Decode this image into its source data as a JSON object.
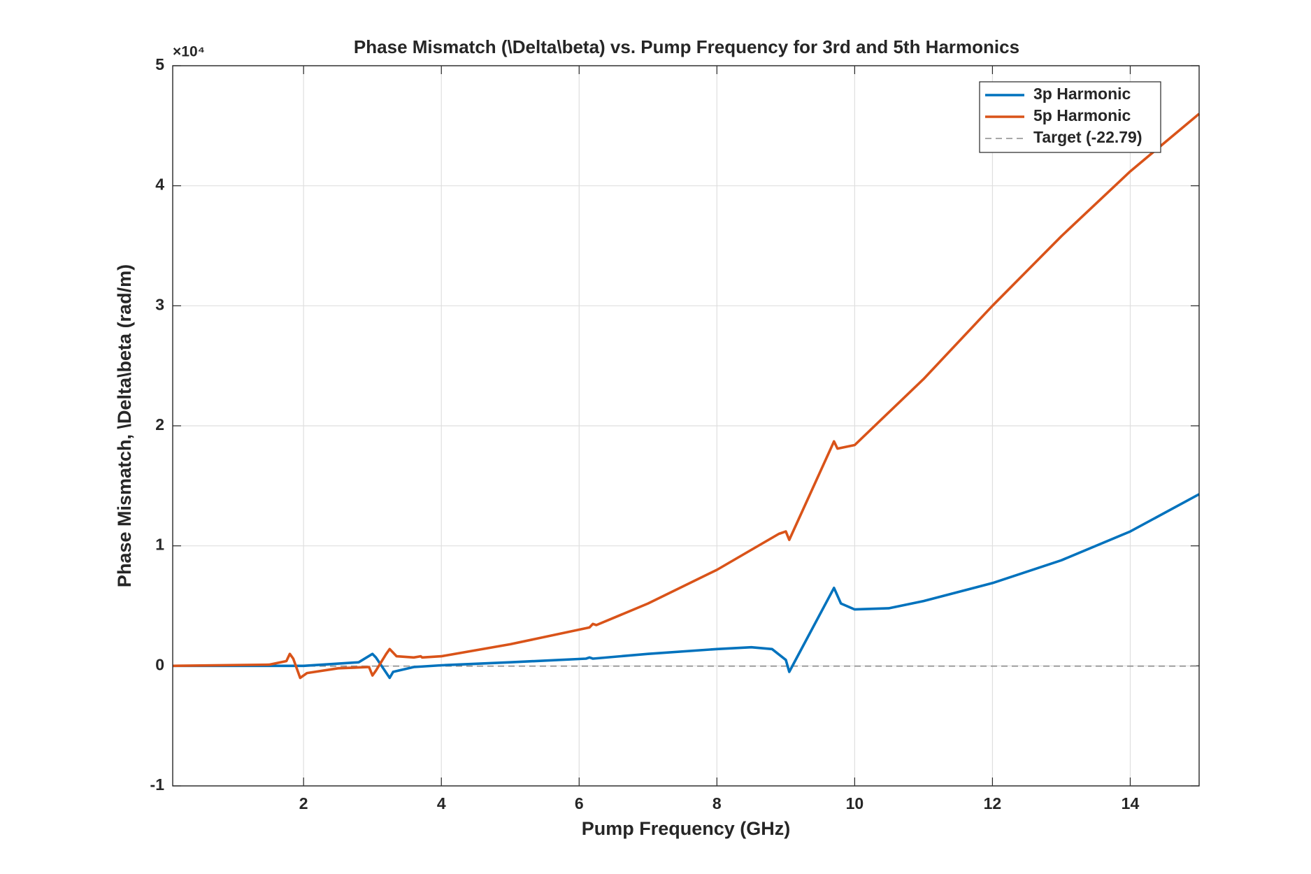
{
  "chart_data": {
    "type": "line",
    "title": "Phase Mismatch (\\Delta\\beta) vs. Pump Frequency for 3rd and 5th Harmonics",
    "xlabel": "Pump Frequency (GHz)",
    "ylabel": "Phase Mismatch, \\Delta\\beta (rad/m)",
    "y_exponent_label": "×10⁴",
    "xlim": [
      0.1,
      15
    ],
    "xticks": [
      2,
      4,
      6,
      8,
      10,
      12,
      14
    ],
    "ylim": [
      -10000,
      50000
    ],
    "yticks": [
      {
        "value": -10000,
        "label": "-1"
      },
      {
        "value": 0,
        "label": "0"
      },
      {
        "value": 10000,
        "label": "1"
      },
      {
        "value": 20000,
        "label": "2"
      },
      {
        "value": 30000,
        "label": "3"
      },
      {
        "value": 40000,
        "label": "4"
      },
      {
        "value": 50000,
        "label": "5"
      }
    ],
    "grid": true,
    "legend": "upper right",
    "series": [
      {
        "name": "3p Harmonic",
        "color": "#0072bd",
        "x": [
          0.1,
          2,
          2.8,
          3.0,
          3.05,
          3.25,
          3.3,
          3.6,
          4,
          5,
          6.1,
          6.15,
          6.2,
          7,
          8,
          8.5,
          8.8,
          9.0,
          9.05,
          9.7,
          9.8,
          10,
          10.5,
          11,
          12,
          13,
          14,
          15
        ],
        "values": [
          0,
          0,
          300,
          1000,
          700,
          -1000,
          -500,
          -100,
          50,
          300,
          600,
          700,
          600,
          1000,
          1400,
          1550,
          1400,
          500,
          -500,
          6500,
          5200,
          4700,
          4800,
          5400,
          6900,
          8800,
          11200,
          14300
        ]
      },
      {
        "name": "5p Harmonic",
        "color": "#d95319",
        "x": [
          0.1,
          1.5,
          1.75,
          1.8,
          1.85,
          1.95,
          2.05,
          2.5,
          2.95,
          3.0,
          3.05,
          3.2,
          3.25,
          3.35,
          3.6,
          3.7,
          3.72,
          4,
          5,
          6.15,
          6.2,
          6.25,
          7,
          8,
          8.9,
          9.0,
          9.05,
          9.7,
          9.75,
          10,
          11,
          12,
          13,
          14,
          15
        ],
        "values": [
          0,
          100,
          400,
          1000,
          600,
          -1000,
          -600,
          -200,
          -100,
          -800,
          -400,
          1000,
          1400,
          800,
          700,
          800,
          700,
          800,
          1800,
          3200,
          3500,
          3400,
          5200,
          8000,
          11000,
          11200,
          10500,
          18700,
          18100,
          18400,
          23900,
          30000,
          35800,
          41200,
          46000
        ]
      }
    ],
    "target": {
      "name": "Target (-22.79)",
      "value": -22.79,
      "color": "#8c8c8c"
    }
  }
}
